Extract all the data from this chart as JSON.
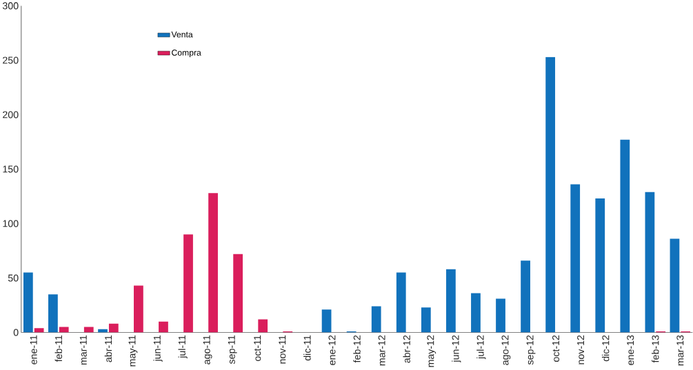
{
  "chart_data": {
    "type": "bar",
    "categories": [
      "ene-11",
      "feb-11",
      "mar-11",
      "abr-11",
      "may-11",
      "jun-11",
      "jul-11",
      "ago-11",
      "sep-11",
      "oct-11",
      "nov-11",
      "dic-11",
      "ene-12",
      "feb-12",
      "mar-12",
      "abr-12",
      "may-12",
      "jun-12",
      "jul-12",
      "ago-12",
      "sep-12",
      "oct-12",
      "nov-12",
      "dic-12",
      "ene-13",
      "feb-13",
      "mar-13"
    ],
    "series": [
      {
        "name": "Venta",
        "color": "#1172bc",
        "values": [
          55,
          35,
          0,
          3,
          0,
          0,
          0,
          0,
          0,
          0,
          0,
          0,
          21,
          1,
          24,
          55,
          23,
          58,
          36,
          31,
          66,
          253,
          136,
          123,
          177,
          129,
          86
        ]
      },
      {
        "name": "Compra",
        "color": "#da1e5c",
        "values": [
          4,
          5,
          5,
          8,
          43,
          10,
          90,
          128,
          72,
          12,
          1,
          0,
          0,
          0,
          0,
          0,
          0,
          0,
          0,
          0,
          0,
          0,
          0,
          0,
          0,
          1,
          1
        ]
      }
    ],
    "ylim": [
      0,
      300
    ],
    "yticks": [
      0,
      50,
      100,
      150,
      200,
      250,
      300
    ],
    "grid": false,
    "legend": "top left"
  }
}
